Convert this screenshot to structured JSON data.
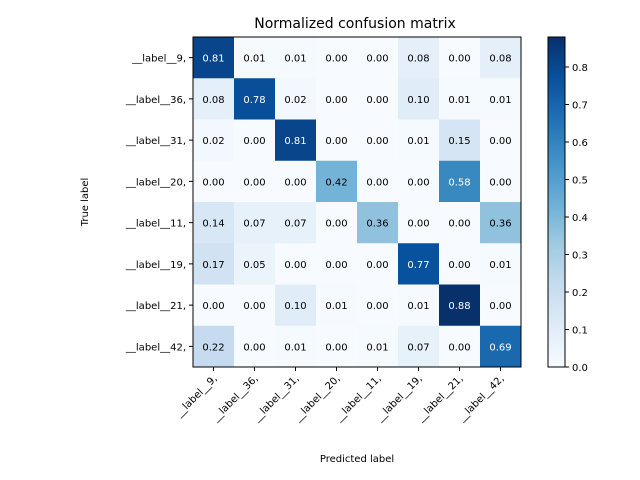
{
  "chart_data": {
    "type": "heatmap",
    "title": "Normalized confusion matrix",
    "xlabel": "Predicted label",
    "ylabel": "True label",
    "row_labels": [
      "__label__9,",
      "__label__36,",
      "__label__31,",
      "__label__20,",
      "__label__11,",
      "__label__19,",
      "__label__21,",
      "__label__42,"
    ],
    "col_labels": [
      "__label__9,",
      "__label__36,",
      "__label__31,",
      "__label__20,",
      "__label__11,",
      "__label__19,",
      "__label__21,",
      "__label__42,"
    ],
    "values": [
      [
        0.81,
        0.01,
        0.01,
        0.0,
        0.0,
        0.08,
        0.0,
        0.08
      ],
      [
        0.08,
        0.78,
        0.02,
        0.0,
        0.0,
        0.1,
        0.01,
        0.01
      ],
      [
        0.02,
        0.0,
        0.81,
        0.0,
        0.0,
        0.01,
        0.15,
        0.0
      ],
      [
        0.0,
        0.0,
        0.0,
        0.42,
        0.0,
        0.0,
        0.58,
        0.0
      ],
      [
        0.14,
        0.07,
        0.07,
        0.0,
        0.36,
        0.0,
        0.0,
        0.36
      ],
      [
        0.17,
        0.05,
        0.0,
        0.0,
        0.0,
        0.77,
        0.0,
        0.01
      ],
      [
        0.0,
        0.0,
        0.1,
        0.01,
        0.0,
        0.01,
        0.88,
        0.0
      ],
      [
        0.22,
        0.0,
        0.01,
        0.0,
        0.01,
        0.07,
        0.0,
        0.69
      ]
    ],
    "colorbar": {
      "min": 0.0,
      "max": 0.88,
      "ticks": [
        0.0,
        0.1,
        0.2,
        0.3,
        0.4,
        0.5,
        0.6,
        0.7,
        0.8
      ],
      "colormap": "Blues"
    },
    "grid": false
  }
}
